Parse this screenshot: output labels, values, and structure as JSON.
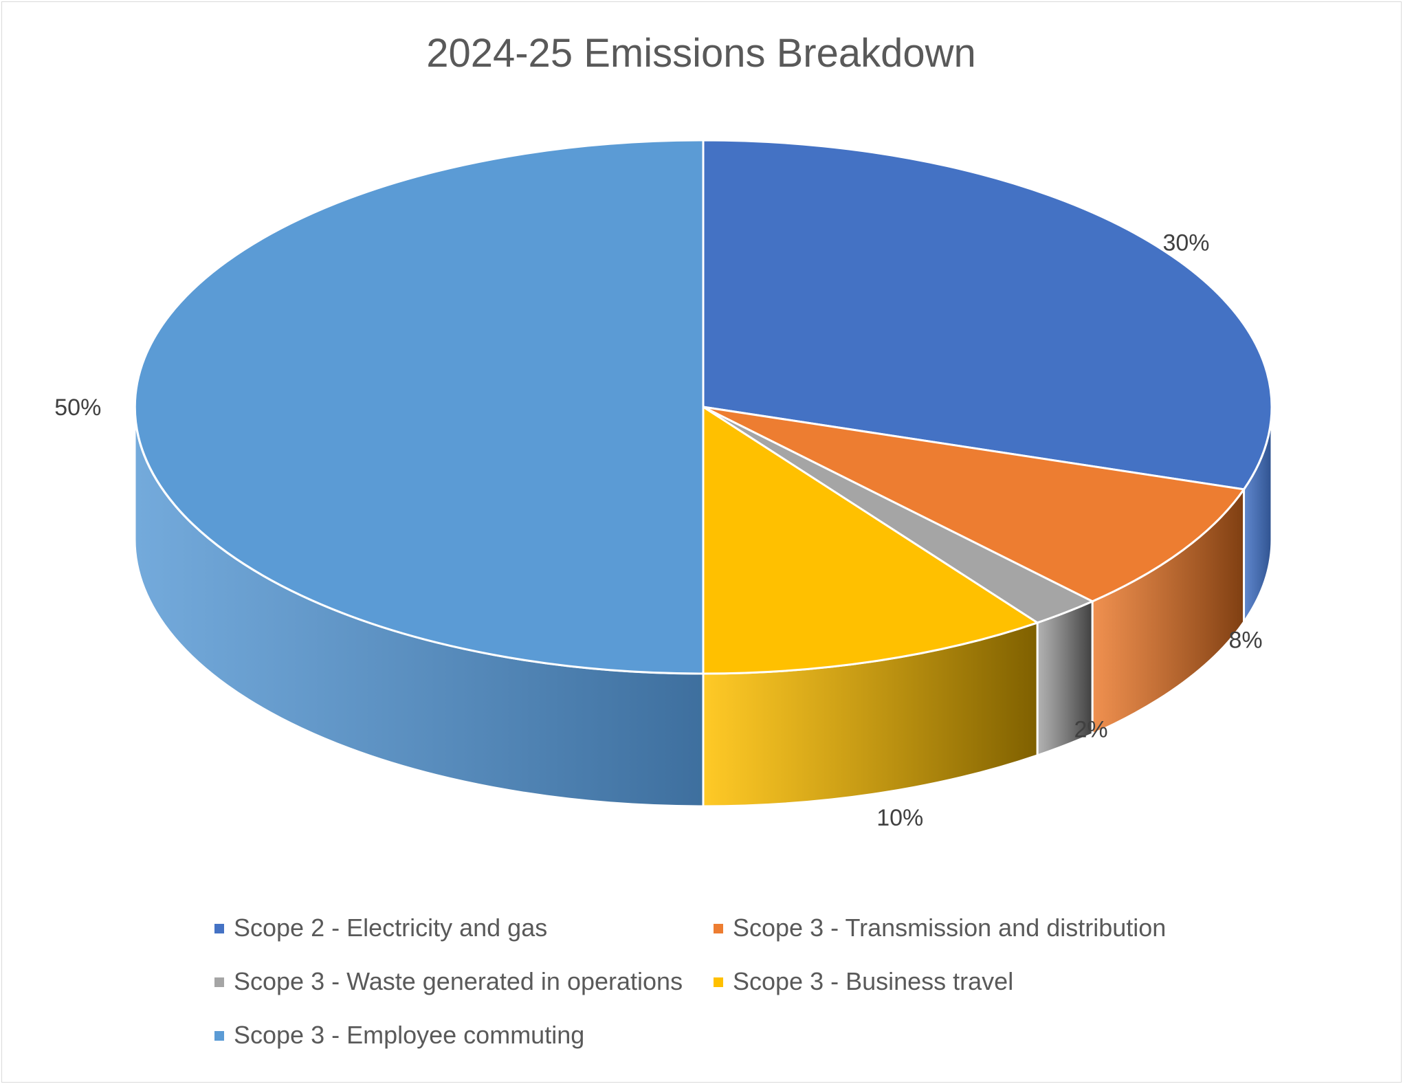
{
  "chart_data": {
    "type": "pie",
    "title": "2024-25 Emissions Breakdown",
    "categories": [
      "Scope 2 - Electricity and gas",
      "Scope 3 - Transmission and distribution",
      "Scope 3 - Waste generated in operations",
      "Scope 3 - Business travel",
      "Scope 3 - Employee commuting"
    ],
    "values": [
      30,
      8,
      2,
      10,
      50
    ],
    "data_labels": [
      "30%",
      "8%",
      "2%",
      "10%",
      "50%"
    ],
    "colors": [
      "#4472C4",
      "#ED7D31",
      "#A5A5A5",
      "#FFC000",
      "#5B9BD5"
    ],
    "side_colors": [
      "#2F528F",
      "#7F3F12",
      "#404040",
      "#7F6000",
      "#3E6F9E"
    ],
    "style": "3d",
    "legend_position": "bottom"
  }
}
